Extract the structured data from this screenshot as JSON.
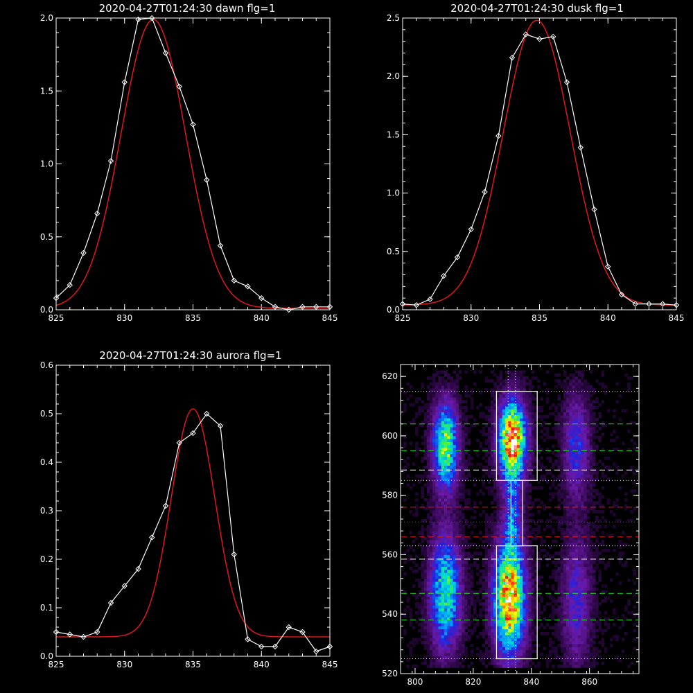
{
  "chart_data": [
    {
      "type": "line",
      "title": "2020-04-27T01:24:30 dawn flg=1",
      "xlim": [
        825,
        845
      ],
      "ylim": [
        0,
        2.0
      ],
      "xticks": [
        825,
        830,
        835,
        840,
        845
      ],
      "yticks": [
        0.0,
        0.5,
        1.0,
        1.5,
        2.0
      ],
      "ytick_labels": [
        "0.0",
        "0.5",
        "1.0",
        "1.5",
        "2.0"
      ],
      "grid": false,
      "colors": {
        "observed": "#ffffff",
        "fit": "#e01818"
      },
      "series": [
        {
          "x": [
            825,
            826,
            827,
            828,
            829,
            830,
            831,
            832,
            833,
            834,
            835,
            836,
            837,
            838,
            839,
            840,
            841,
            842,
            843,
            844,
            845
          ],
          "values": [
            0.08,
            0.17,
            0.39,
            0.66,
            1.02,
            1.56,
            1.99,
            2.0,
            1.76,
            1.53,
            1.27,
            0.89,
            0.44,
            0.2,
            0.16,
            0.08,
            0.02,
            0.0,
            0.02,
            0.02,
            0.02
          ]
        },
        {
          "fit": {
            "amp": 1.98,
            "center": 832.1,
            "sigma": 2.35,
            "offset": 0.01
          }
        }
      ]
    },
    {
      "type": "line",
      "title": "2020-04-27T01:24:30 dusk flg=1",
      "xlim": [
        825,
        845
      ],
      "ylim": [
        0,
        2.5
      ],
      "xticks": [
        825,
        830,
        835,
        840,
        845
      ],
      "yticks": [
        0.0,
        0.5,
        1.0,
        1.5,
        2.0,
        2.5
      ],
      "ytick_labels": [
        "0.0",
        "0.5",
        "1.0",
        "1.5",
        "2.0",
        "2.5"
      ],
      "grid": false,
      "colors": {
        "observed": "#ffffff",
        "fit": "#e01818"
      },
      "series": [
        {
          "x": [
            825,
            826,
            827,
            828,
            829,
            830,
            831,
            832,
            833,
            834,
            835,
            836,
            837,
            838,
            839,
            840,
            841,
            842,
            843,
            844,
            845
          ],
          "values": [
            0.05,
            0.04,
            0.09,
            0.29,
            0.45,
            0.69,
            1.01,
            1.49,
            2.16,
            2.36,
            2.32,
            2.34,
            1.95,
            1.39,
            0.86,
            0.37,
            0.13,
            0.05,
            0.05,
            0.05,
            0.04
          ]
        },
        {
          "fit": {
            "amp": 2.44,
            "center": 834.8,
            "sigma": 2.45,
            "offset": 0.04
          }
        }
      ]
    },
    {
      "type": "line",
      "title": "2020-04-27T01:24:30 aurora flg=1",
      "xlim": [
        825,
        845
      ],
      "ylim": [
        0,
        0.6
      ],
      "xticks": [
        825,
        830,
        835,
        840,
        845
      ],
      "yticks": [
        0.0,
        0.1,
        0.2,
        0.3,
        0.4,
        0.5,
        0.6
      ],
      "ytick_labels": [
        "0.0",
        "0.1",
        "0.2",
        "0.3",
        "0.4",
        "0.5",
        "0.6"
      ],
      "grid": false,
      "colors": {
        "observed": "#ffffff",
        "fit": "#e01818"
      },
      "series": [
        {
          "x": [
            825,
            826,
            827,
            828,
            829,
            830,
            831,
            832,
            833,
            834,
            835,
            836,
            837,
            838,
            839,
            840,
            841,
            842,
            843,
            844,
            845
          ],
          "values": [
            0.05,
            0.045,
            0.04,
            0.05,
            0.11,
            0.145,
            0.18,
            0.245,
            0.31,
            0.44,
            0.46,
            0.5,
            0.475,
            0.21,
            0.035,
            0.02,
            0.02,
            0.06,
            0.05,
            0.01,
            0.02
          ]
        },
        {
          "fit": {
            "amp": 0.47,
            "center": 835.0,
            "sigma": 1.6,
            "offset": 0.04
          }
        }
      ]
    },
    {
      "type": "heatmap",
      "title": "",
      "xlim": [
        795,
        877
      ],
      "ylim": [
        520,
        624
      ],
      "xticks": [
        800,
        820,
        840,
        860
      ],
      "yticks": [
        520,
        540,
        560,
        580,
        600,
        620
      ],
      "ytick_labels": [
        "520",
        "540",
        "560",
        "580",
        "600",
        "620"
      ],
      "grid": false,
      "colormap": [
        "#000000",
        "#3a0a5a",
        "#6a1aa8",
        "#2020e0",
        "#0090ff",
        "#00e0d0",
        "#40f040",
        "#ffff00",
        "#ff8000",
        "#ff0000",
        "#ffffff"
      ],
      "blobs": [
        {
          "cx": 810,
          "cy": 596,
          "sx": 3.0,
          "sy": 10,
          "amp": 0.62
        },
        {
          "cx": 833,
          "cy": 598,
          "sx": 3.2,
          "sy": 9,
          "amp": 0.95
        },
        {
          "cx": 855,
          "cy": 596,
          "sx": 3.2,
          "sy": 12,
          "amp": 0.28
        },
        {
          "cx": 810,
          "cy": 547,
          "sx": 3.6,
          "sy": 13,
          "amp": 0.55
        },
        {
          "cx": 832,
          "cy": 545,
          "sx": 3.6,
          "sy": 13,
          "amp": 0.88
        },
        {
          "cx": 855,
          "cy": 544,
          "sx": 3.4,
          "sy": 15,
          "amp": 0.25
        },
        {
          "cx": 833,
          "cy": 573,
          "sx": 2.0,
          "sy": 8,
          "amp": 0.28
        }
      ],
      "boxes": [
        {
          "x": [
            828,
            842
          ],
          "y": [
            585,
            615
          ]
        },
        {
          "x": [
            828,
            842
          ],
          "y": [
            525,
            563
          ]
        },
        {
          "x": [
            833,
            837
          ],
          "y": [
            563,
            585
          ]
        }
      ],
      "hlines": [
        {
          "y": 615,
          "color": "#ffffff",
          "style": "dotted"
        },
        {
          "y": 604,
          "color": "#20e020",
          "style": "dashed"
        },
        {
          "y": 595,
          "color": "#20e020",
          "style": "dashed"
        },
        {
          "y": 588.5,
          "color": "#ffffff",
          "style": "dashed"
        },
        {
          "y": 585,
          "color": "#ffffff",
          "style": "dotted"
        },
        {
          "y": 576,
          "color": "#e01818",
          "style": "dashed"
        },
        {
          "y": 571,
          "color": "#e01818",
          "style": "dotted"
        },
        {
          "y": 566,
          "color": "#e01818",
          "style": "dashed"
        },
        {
          "y": 563,
          "color": "#ffffff",
          "style": "dotted"
        },
        {
          "y": 558.5,
          "color": "#ffffff",
          "style": "dashed"
        },
        {
          "y": 547,
          "color": "#20e020",
          "style": "dashed"
        },
        {
          "y": 538,
          "color": "#20e020",
          "style": "dashed"
        },
        {
          "y": 525,
          "color": "#ffffff",
          "style": "dotted"
        }
      ],
      "vlines": [
        {
          "x": 832,
          "color": "#ffffff",
          "style": "dotted"
        },
        {
          "x": 834.5,
          "color": "#ffffff",
          "style": "dotted"
        }
      ]
    }
  ]
}
